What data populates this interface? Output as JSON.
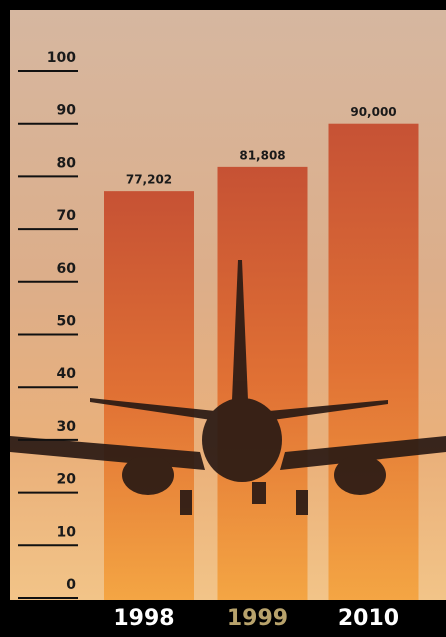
{
  "chart_data": {
    "type": "bar",
    "categories": [
      "1998",
      "1999",
      "2010"
    ],
    "category_label_colors": [
      "#ffffff",
      "#b8a36c",
      "#ffffff"
    ],
    "values": [
      77.202,
      81.808,
      90
    ],
    "value_labels": [
      "77,202",
      "81,808",
      "90,000"
    ],
    "ylim": [
      0,
      100
    ],
    "yticks": [
      0,
      10,
      20,
      30,
      40,
      50,
      60,
      70,
      80,
      90,
      100
    ]
  }
}
